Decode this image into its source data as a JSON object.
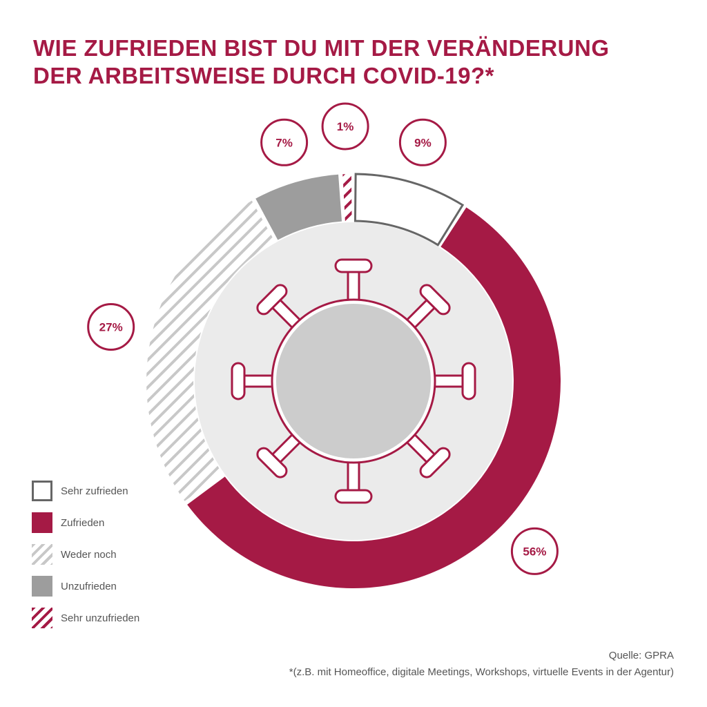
{
  "title": {
    "line1": "WIE ZUFRIEDEN BIST DU MIT DER VERÄNDERUNG",
    "line2": "DER ARBEITSWEISE DURCH COVID-19?*"
  },
  "colors": {
    "accent": "#a51a45",
    "dark_gray": "#666666",
    "mid_gray": "#9d9d9d",
    "light_gray": "#cccccc",
    "inner_disk": "#ebebeb",
    "hatch_gray": "#c8c8c8"
  },
  "chart_data": {
    "type": "pie",
    "variant": "donut",
    "categories": [
      "Sehr zufrieden",
      "Zufrieden",
      "Weder noch",
      "Unzufrieden",
      "Sehr unzufrieden"
    ],
    "values": [
      9,
      56,
      27,
      7,
      1
    ],
    "labels": [
      "9%",
      "56%",
      "27%",
      "7%",
      "1%"
    ],
    "styles": [
      "outline",
      "solid-accent",
      "hatch-gray",
      "solid-gray",
      "hatch-accent"
    ],
    "legend_position": "bottom-left",
    "center_icon": "virus-icon"
  },
  "legend": [
    {
      "label": "Sehr zufrieden",
      "style": "outline"
    },
    {
      "label": "Zufrieden",
      "style": "solid-accent"
    },
    {
      "label": "Weder noch",
      "style": "hatch-gray"
    },
    {
      "label": "Unzufrieden",
      "style": "solid-gray"
    },
    {
      "label": "Sehr unzufrieden",
      "style": "hatch-accent"
    }
  ],
  "footer": {
    "source": "Quelle: GPRA",
    "note": "*(z.B. mit Homeoffice, digitale Meetings, Workshops, virtuelle Events in der Agentur)"
  }
}
